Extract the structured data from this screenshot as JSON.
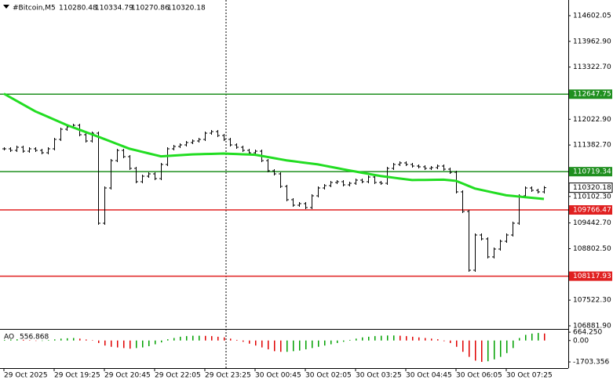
{
  "chart_data": {
    "type": "ohlc",
    "title": "#Bitcoin,M5",
    "last_bar": {
      "open": 110280.48,
      "high": 110334.79,
      "low": 110270.86
    },
    "categories": [
      "29 Oct 2025",
      null,
      null,
      null,
      null,
      null,
      null,
      null,
      "29 Oct 19:25",
      null,
      null,
      null,
      null,
      null,
      null,
      null,
      "29 Oct 20:45",
      null,
      null,
      null,
      null,
      null,
      null,
      null,
      "29 Oct 22:05",
      null,
      null,
      null,
      null,
      null,
      null,
      null,
      "29 Oct 23:25",
      null,
      null,
      null,
      null,
      null,
      null,
      null,
      "30 Oct 00:45",
      null,
      null,
      null,
      null,
      null,
      null,
      null,
      "30 Oct 02:05",
      null,
      null,
      null,
      null,
      null,
      null,
      null,
      "30 Oct 03:25",
      null,
      null,
      null,
      null,
      null,
      null,
      null,
      "30 Oct 04:45",
      null,
      null,
      null,
      null,
      null,
      null,
      null,
      "30 Oct 06:05",
      null,
      null,
      null,
      null,
      null,
      null,
      null,
      "30 Oct 07:25",
      null,
      null,
      null,
      null,
      null,
      null
    ],
    "series": [
      {
        "color": "#000000",
        "values": [
          111288,
          111249,
          111327,
          111229,
          111288,
          111249,
          111190,
          111288,
          111522,
          111775,
          111834,
          111873,
          111639,
          111483,
          111678,
          109436,
          110313,
          110995,
          111249,
          111093,
          110801,
          110469,
          110606,
          110664,
          110547,
          110898,
          111288,
          111346,
          111385,
          111444,
          111483,
          111522,
          111678,
          111717,
          111619,
          111522,
          111385,
          111327,
          111249,
          111190,
          111229,
          110995,
          110742,
          110664,
          110352,
          110021,
          109884,
          109923,
          109826,
          110118,
          110313,
          110372,
          110450,
          110469,
          110391,
          110430,
          110508,
          110469,
          110586,
          110450,
          110430,
          110801,
          110898,
          110937,
          110898,
          110859,
          110840,
          110801,
          110820,
          110859,
          110781,
          110703,
          110216,
          109728,
          108266,
          109143,
          109046,
          108598,
          108793,
          108987,
          109143,
          109436,
          110118,
          110313,
          110255,
          110216,
          110320.18
        ]
      },
      {
        "color": "#22dd22",
        "values": [
          112660,
          112572,
          112484,
          112396,
          112308,
          112220,
          112152,
          112084,
          112016,
          111948,
          111880,
          111822,
          111764,
          111706,
          111648,
          111590,
          111530,
          111470,
          111410,
          111350,
          111290,
          111252,
          111214,
          111176,
          111138,
          111100,
          111110,
          111120,
          111130,
          111140,
          111150,
          111154,
          111158,
          111162,
          111166,
          111170,
          111164,
          111158,
          111152,
          111146,
          111140,
          111112,
          111084,
          111056,
          111028,
          111000,
          110980,
          110960,
          110940,
          110920,
          110900,
          110870,
          110840,
          110810,
          110780,
          110750,
          110722,
          110694,
          110666,
          110638,
          110610,
          110590,
          110570,
          110550,
          110530,
          110510,
          110512,
          110514,
          110516,
          110518,
          110520,
          110505,
          110490,
          110427,
          110363,
          110300,
          110266,
          110232,
          110198,
          110164,
          110130,
          110115,
          110100,
          110085,
          110070,
          110055,
          110040
        ]
      }
    ],
    "levels": [
      {
        "value": 112647.75,
        "color": "#1f8f1f"
      },
      {
        "value": 110719.34,
        "color": "#1f8f1f"
      },
      {
        "value": 109766.47,
        "color": "#e02020"
      },
      {
        "value": 108117.93,
        "color": "#e02020"
      }
    ],
    "ylim": [
      106804,
      114992
    ],
    "yticks": [
      114602.05,
      {
        "value": 113962.9,
        "label": "113962.90"
      },
      {
        "value": 113322.7,
        "label": "113322.70"
      },
      {
        "value": 112022.9,
        "label": "112022.90"
      },
      {
        "value": 111382.7,
        "label": "111382.70"
      },
      {
        "value": 110102.3,
        "label": "110102.30"
      },
      {
        "value": 109442.7,
        "label": "109442.70"
      },
      {
        "value": 108802.5,
        "label": "108802.50"
      },
      {
        "value": 107522.3,
        "label": "107522.30"
      },
      {
        "value": 106881.9,
        "label": "106881.90"
      }
    ],
    "indicator": {
      "type": "bar",
      "name": "AO",
      "up_color": "#00a000",
      "down_color": "#e00000",
      "values": [
        50,
        80,
        100,
        60,
        20,
        -30,
        -20,
        40,
        90,
        150,
        180,
        200,
        150,
        80,
        30,
        -200,
        -400,
        -500,
        -550,
        -600,
        -650,
        -600,
        -550,
        -450,
        -300,
        -150,
        100,
        200,
        300,
        350,
        380,
        380,
        370,
        350,
        300,
        250,
        150,
        50,
        -100,
        -250,
        -400,
        -550,
        -700,
        -850,
        -900,
        -900,
        -850,
        -800,
        -700,
        -600,
        -500,
        -400,
        -300,
        -200,
        -100,
        50,
        150,
        250,
        300,
        350,
        380,
        400,
        400,
        380,
        350,
        300,
        250,
        200,
        150,
        100,
        -50,
        -200,
        -500,
        -900,
        -1300,
        -1600,
        -1700,
        -1650,
        -1500,
        -1300,
        -1000,
        -600,
        200,
        450,
        550,
        600,
        556.868
      ],
      "ylim": [
        -2196,
        732
      ],
      "yticks": [
        {
          "value": 664.25,
          "label": "664.250"
        },
        {
          "value": 0,
          "label": "0.00"
        },
        -1703.356
      ]
    }
  }
}
